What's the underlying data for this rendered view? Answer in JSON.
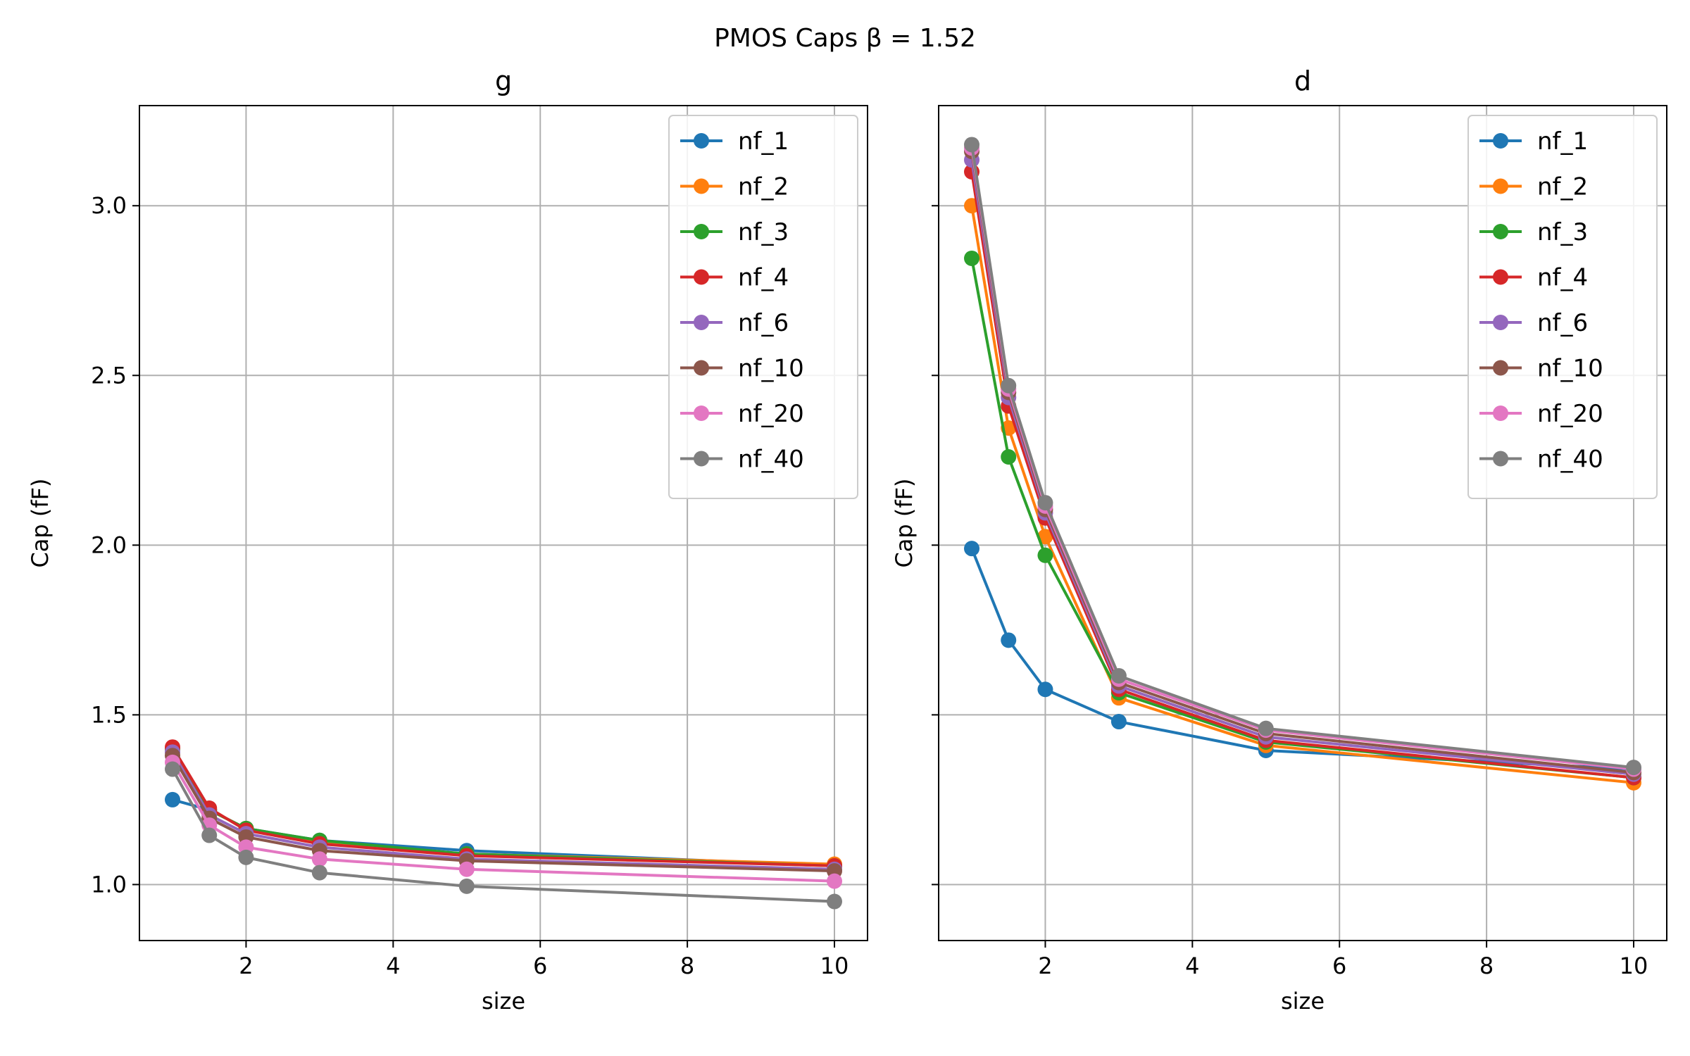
{
  "figure_title": "PMOS Caps β = 1.52",
  "colors": {
    "nf_1": "#1f77b4",
    "nf_2": "#ff7f0e",
    "nf_3": "#2ca02c",
    "nf_4": "#d62728",
    "nf_6": "#9467bd",
    "nf_10": "#8c564b",
    "nf_20": "#e377c2",
    "nf_40": "#7f7f7f",
    "grid": "#b0b0b0",
    "legend_border": "#cccccc"
  },
  "chart_data": [
    {
      "type": "line",
      "title": "g",
      "xlabel": "size",
      "ylabel": "Cap (fF)",
      "xlim": [
        0.55,
        10.45
      ],
      "ylim": [
        0.835,
        3.295
      ],
      "xticks": [
        2,
        4,
        6,
        8,
        10
      ],
      "yticks": [
        1.0,
        1.5,
        2.0,
        2.5,
        3.0
      ],
      "ytick_labels": [
        "1.0",
        "1.5",
        "2.0",
        "2.5",
        "3.0"
      ],
      "grid": true,
      "legend": "top-right",
      "x": [
        1,
        1.5,
        2,
        3,
        5,
        10
      ],
      "series": [
        {
          "name": "nf_1",
          "values": [
            1.25,
            1.22,
            1.165,
            1.13,
            1.1,
            1.055
          ]
        },
        {
          "name": "nf_2",
          "values": [
            1.4,
            1.22,
            1.165,
            1.125,
            1.09,
            1.06
          ]
        },
        {
          "name": "nf_3",
          "values": [
            1.4,
            1.22,
            1.165,
            1.13,
            1.09,
            1.055
          ]
        },
        {
          "name": "nf_4",
          "values": [
            1.405,
            1.225,
            1.16,
            1.12,
            1.085,
            1.055
          ]
        },
        {
          "name": "nf_6",
          "values": [
            1.39,
            1.205,
            1.15,
            1.11,
            1.075,
            1.045
          ]
        },
        {
          "name": "nf_10",
          "values": [
            1.38,
            1.195,
            1.14,
            1.1,
            1.07,
            1.04
          ]
        },
        {
          "name": "nf_20",
          "values": [
            1.36,
            1.175,
            1.11,
            1.075,
            1.045,
            1.01
          ]
        },
        {
          "name": "nf_40",
          "values": [
            1.34,
            1.145,
            1.08,
            1.035,
            0.995,
            0.95
          ]
        }
      ]
    },
    {
      "type": "line",
      "title": "d",
      "xlabel": "size",
      "ylabel": "Cap (fF)",
      "xlim": [
        0.55,
        10.45
      ],
      "ylim": [
        0.835,
        3.295
      ],
      "xticks": [
        2,
        4,
        6,
        8,
        10
      ],
      "yticks": [
        1.0,
        1.5,
        2.0,
        2.5,
        3.0
      ],
      "ytick_labels": [
        "",
        "",
        "",
        "",
        ""
      ],
      "grid": true,
      "legend": "top-right",
      "x": [
        1,
        1.5,
        2,
        3,
        5,
        10
      ],
      "series": [
        {
          "name": "nf_1",
          "values": [
            1.99,
            1.72,
            1.575,
            1.48,
            1.395,
            1.34
          ]
        },
        {
          "name": "nf_2",
          "values": [
            3.0,
            2.345,
            2.025,
            1.55,
            1.41,
            1.3
          ]
        },
        {
          "name": "nf_3",
          "values": [
            2.845,
            2.26,
            1.97,
            1.565,
            1.42,
            1.315
          ]
        },
        {
          "name": "nf_4",
          "values": [
            3.1,
            2.41,
            2.08,
            1.575,
            1.425,
            1.315
          ]
        },
        {
          "name": "nf_6",
          "values": [
            3.135,
            2.435,
            2.095,
            1.585,
            1.435,
            1.325
          ]
        },
        {
          "name": "nf_10",
          "values": [
            3.16,
            2.45,
            2.105,
            1.595,
            1.445,
            1.33
          ]
        },
        {
          "name": "nf_20",
          "values": [
            3.17,
            2.46,
            2.115,
            1.605,
            1.455,
            1.34
          ]
        },
        {
          "name": "nf_40",
          "values": [
            3.18,
            2.47,
            2.125,
            1.615,
            1.46,
            1.345
          ]
        }
      ]
    }
  ]
}
